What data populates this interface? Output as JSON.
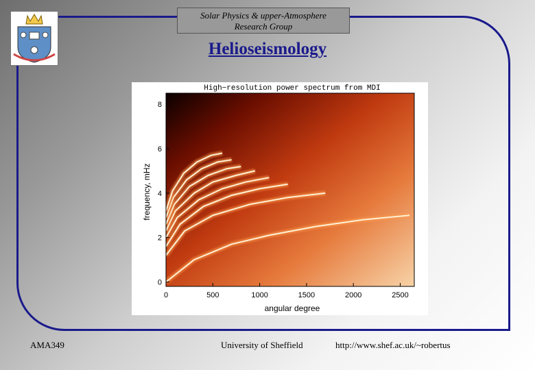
{
  "header": {
    "group_line1": "Solar Physics & upper-Atmosphere",
    "group_line2": "Research Group"
  },
  "slide_title": "Helioseismology",
  "footer": {
    "course": "AMA349",
    "university": "University of Sheffield",
    "url": "http://www.shef.ac.uk/~robertus"
  },
  "colors": {
    "frame": "#1a1a8c",
    "title": "#1a1a8c"
  },
  "logo": {
    "name": "university-crest"
  },
  "chart_data": {
    "type": "heatmap",
    "title": "High−resolution power spectrum from MDI",
    "xlabel": "angular degree",
    "ylabel": "frequency, mHz",
    "xlim": [
      0,
      2650
    ],
    "ylim": [
      -0.2,
      8.5
    ],
    "x_ticks": [
      "0",
      "500",
      "1000",
      "1500",
      "2000",
      "2500"
    ],
    "x_tick_values": [
      0,
      500,
      1000,
      1500,
      2000,
      2500
    ],
    "y_ticks": [
      "0",
      "2",
      "4",
      "6",
      "8"
    ],
    "y_tick_values": [
      0,
      2,
      4,
      6,
      8
    ],
    "ridges": [
      {
        "order": 0,
        "l": [
          0,
          300,
          700,
          1100,
          1600,
          2100,
          2600
        ],
        "nu": [
          0,
          1.0,
          1.7,
          2.1,
          2.5,
          2.8,
          3.0
        ]
      },
      {
        "order": 1,
        "l": [
          0,
          200,
          500,
          900,
          1300,
          1700
        ],
        "nu": [
          1.2,
          2.3,
          3.0,
          3.5,
          3.8,
          4.0
        ]
      },
      {
        "order": 2,
        "l": [
          0,
          150,
          400,
          700,
          1000,
          1300
        ],
        "nu": [
          1.6,
          2.6,
          3.4,
          3.9,
          4.2,
          4.4
        ]
      },
      {
        "order": 3,
        "l": [
          0,
          120,
          350,
          600,
          850,
          1100
        ],
        "nu": [
          2.0,
          2.9,
          3.7,
          4.2,
          4.5,
          4.7
        ]
      },
      {
        "order": 4,
        "l": [
          0,
          100,
          300,
          500,
          750,
          950
        ],
        "nu": [
          2.3,
          3.2,
          4.0,
          4.5,
          4.8,
          5.0
        ]
      },
      {
        "order": 5,
        "l": [
          0,
          90,
          250,
          450,
          650,
          800
        ],
        "nu": [
          2.6,
          3.5,
          4.3,
          4.8,
          5.1,
          5.2
        ]
      },
      {
        "order": 6,
        "l": [
          0,
          80,
          220,
          380,
          550,
          700
        ],
        "nu": [
          2.9,
          3.8,
          4.6,
          5.1,
          5.4,
          5.5
        ]
      },
      {
        "order": 7,
        "l": [
          0,
          70,
          190,
          330,
          480,
          600
        ],
        "nu": [
          3.2,
          4.1,
          4.9,
          5.4,
          5.7,
          5.8
        ]
      }
    ]
  }
}
